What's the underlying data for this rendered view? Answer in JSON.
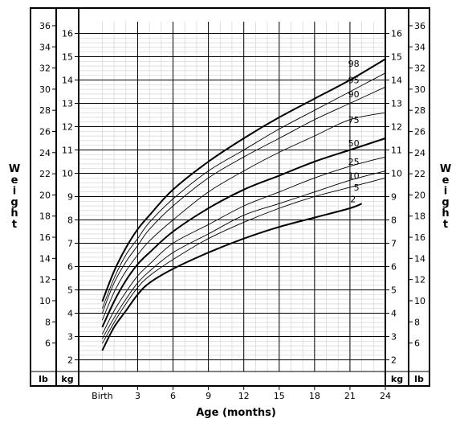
{
  "chart_data": {
    "type": "line",
    "xlabel": "Age (months)",
    "x_ticks": [
      {
        "x": 0,
        "label": "Birth"
      },
      {
        "x": 3,
        "label": "3"
      },
      {
        "x": 6,
        "label": "6"
      },
      {
        "x": 9,
        "label": "9"
      },
      {
        "x": 12,
        "label": "12"
      },
      {
        "x": 15,
        "label": "15"
      },
      {
        "x": 18,
        "label": "18"
      },
      {
        "x": 21,
        "label": "21"
      },
      {
        "x": 24,
        "label": "24"
      }
    ],
    "xlim": [
      -2,
      24
    ],
    "ylim_kg": [
      1.5,
      16.5
    ],
    "kg_ticks": [
      "2",
      "3",
      "4",
      "5",
      "6",
      "7",
      "8",
      "9",
      "10",
      "11",
      "12",
      "13",
      "14",
      "15",
      "16"
    ],
    "lb_ticks": [
      "6",
      "8",
      "10",
      "12",
      "14",
      "16",
      "18",
      "20",
      "22",
      "24",
      "26",
      "28",
      "30",
      "32",
      "34",
      "36"
    ],
    "side_label": "Weight",
    "unit_left_outer": "lb",
    "unit_left_inner": "kg",
    "unit_right_inner": "kg",
    "unit_right_outer": "lb",
    "x": [
      0,
      1,
      2,
      3,
      4,
      6,
      9,
      12,
      15,
      18,
      21,
      24
    ],
    "series": [
      {
        "name": "98",
        "bold": true,
        "values": [
          4.5,
          5.8,
          6.8,
          7.6,
          8.2,
          9.3,
          10.5,
          11.5,
          12.4,
          13.2,
          14.0,
          14.9
        ]
      },
      {
        "name": "95",
        "bold": false,
        "values": [
          4.2,
          5.5,
          6.5,
          7.2,
          7.9,
          8.9,
          10.1,
          11.0,
          11.9,
          12.7,
          13.5,
          14.3
        ]
      },
      {
        "name": "90",
        "bold": false,
        "values": [
          4.0,
          5.3,
          6.2,
          6.9,
          7.6,
          8.6,
          9.8,
          10.7,
          11.5,
          12.3,
          13.0,
          13.7
        ]
      },
      {
        "name": "75",
        "bold": false,
        "values": [
          3.7,
          4.9,
          5.8,
          6.5,
          7.1,
          8.0,
          9.2,
          10.1,
          10.9,
          11.6,
          12.3,
          12.6
        ]
      },
      {
        "name": "50",
        "bold": true,
        "values": [
          3.4,
          4.5,
          5.4,
          6.1,
          6.6,
          7.5,
          8.5,
          9.3,
          9.9,
          10.5,
          11.0,
          11.5
        ]
      },
      {
        "name": "25",
        "bold": false,
        "values": [
          3.1,
          4.1,
          4.9,
          5.6,
          6.1,
          7.0,
          7.8,
          8.6,
          9.2,
          9.8,
          10.3,
          10.7
        ]
      },
      {
        "name": "10",
        "bold": false,
        "values": [
          2.9,
          3.8,
          4.6,
          5.3,
          5.8,
          6.6,
          7.4,
          8.2,
          8.7,
          9.2,
          9.7,
          10.1
        ]
      },
      {
        "name": "5",
        "bold": false,
        "values": [
          2.7,
          3.6,
          4.4,
          5.1,
          5.6,
          6.3,
          7.2,
          7.9,
          8.5,
          9.0,
          9.4,
          9.8
        ]
      },
      {
        "name": "2",
        "bold": true,
        "values": [
          2.4,
          3.4,
          4.1,
          4.8,
          5.3,
          5.9,
          6.6,
          7.2,
          7.7,
          8.1,
          8.5,
          8.8
        ]
      }
    ]
  }
}
